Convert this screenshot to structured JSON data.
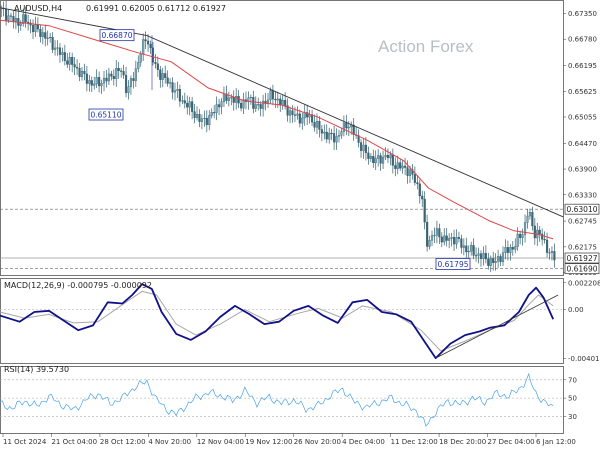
{
  "chart_data": [
    {
      "type": "candlestick",
      "header": {
        "symbol": "AUDUSD,H4",
        "ohlc": "0.61991 0.62005 0.61712 0.61927"
      },
      "watermark": "Action Forex",
      "y_ticks": [
        "0.67350",
        "0.66780",
        "0.66195",
        "0.65625",
        "0.65055",
        "0.64470",
        "0.63900",
        "0.63330",
        "0.62745",
        "0.62175",
        "0.61605"
      ],
      "ylim": [
        0.6155,
        0.6765
      ],
      "x_ticks": [
        "11 Oct 2024",
        "21 Oct 04:00",
        "28 Oct 12:00",
        "4 Nov 20:00",
        "12 Nov 04:00",
        "19 Nov 12:00",
        "26 Nov 20:00",
        "4 Dec 04:00",
        "11 Dec 12:00",
        "18 Dec 20:00",
        "27 Dec 04:00",
        "6 Jan 12:00"
      ],
      "price_path": [
        [
          0,
          0.6745
        ],
        [
          3,
          0.6731
        ],
        [
          7,
          0.6715
        ],
        [
          10,
          0.6722
        ],
        [
          14,
          0.6702
        ],
        [
          18,
          0.6688
        ],
        [
          22,
          0.6664
        ],
        [
          26,
          0.6638
        ],
        [
          30,
          0.6621
        ],
        [
          34,
          0.6597
        ],
        [
          38,
          0.6577
        ],
        [
          40,
          0.6583
        ],
        [
          43,
          0.6586
        ],
        [
          46,
          0.66
        ],
        [
          50,
          0.661
        ],
        [
          52,
          0.656
        ],
        [
          55,
          0.66
        ],
        [
          58,
          0.6655
        ],
        [
          60,
          0.6687
        ],
        [
          63,
          0.6622
        ],
        [
          66,
          0.6598
        ],
        [
          70,
          0.6575
        ],
        [
          74,
          0.6545
        ],
        [
          78,
          0.6525
        ],
        [
          82,
          0.6495
        ],
        [
          86,
          0.6505
        ],
        [
          90,
          0.654
        ],
        [
          94,
          0.6551
        ],
        [
          98,
          0.6534
        ],
        [
          102,
          0.6546
        ],
        [
          106,
          0.6524
        ],
        [
          110,
          0.6552
        ],
        [
          114,
          0.6543
        ],
        [
          118,
          0.6518
        ],
        [
          122,
          0.6502
        ],
        [
          126,
          0.651
        ],
        [
          130,
          0.6481
        ],
        [
          134,
          0.6463
        ],
        [
          138,
          0.646
        ],
        [
          142,
          0.6494
        ],
        [
          146,
          0.6456
        ],
        [
          150,
          0.642
        ],
        [
          154,
          0.6408
        ],
        [
          158,
          0.6421
        ],
        [
          162,
          0.6396
        ],
        [
          166,
          0.6392
        ],
        [
          170,
          0.6363
        ],
        [
          173,
          0.6316
        ],
        [
          174,
          0.6223
        ],
        [
          178,
          0.625
        ],
        [
          182,
          0.6232
        ],
        [
          186,
          0.6237
        ],
        [
          190,
          0.6214
        ],
        [
          194,
          0.6204
        ],
        [
          198,
          0.6192
        ],
        [
          202,
          0.6181
        ],
        [
          206,
          0.6205
        ],
        [
          210,
          0.6218
        ],
        [
          214,
          0.6254
        ],
        [
          216,
          0.6301
        ],
        [
          218,
          0.625
        ],
        [
          220,
          0.625
        ],
        [
          224,
          0.6212
        ],
        [
          226,
          0.6193
        ]
      ],
      "ma_path": [
        [
          0,
          0.672
        ],
        [
          20,
          0.6708
        ],
        [
          40,
          0.6675
        ],
        [
          55,
          0.665
        ],
        [
          70,
          0.6628
        ],
        [
          85,
          0.657
        ],
        [
          100,
          0.6541
        ],
        [
          115,
          0.6532
        ],
        [
          130,
          0.6505
        ],
        [
          150,
          0.6454
        ],
        [
          165,
          0.6408
        ],
        [
          175,
          0.6348
        ],
        [
          185,
          0.6318
        ],
        [
          200,
          0.6275
        ],
        [
          210,
          0.6253
        ],
        [
          220,
          0.6245
        ],
        [
          226,
          0.6235
        ]
      ],
      "trendline": [
        [
          0,
          0.6748
        ],
        [
          60,
          0.6686
        ],
        [
          230,
          0.6284
        ]
      ],
      "levels": [
        {
          "label": "0.63010",
          "value": 0.6301,
          "style": "dashed"
        },
        {
          "label": "0.61690",
          "value": 0.6169,
          "style": "dashed"
        },
        {
          "label": "0.61927",
          "value": 0.61927,
          "style": "solid"
        }
      ],
      "annotations": [
        {
          "label": "0.66870",
          "value": 0.6687
        },
        {
          "label": "0.65110",
          "value": 0.6511
        },
        {
          "label": "0.61795",
          "value": 0.61795
        }
      ]
    },
    {
      "type": "line",
      "header": "MACD(12,26,9) -0.000795 -0.000092",
      "y_ticks": [
        "0.002208",
        "0.00",
        "-0.004012"
      ],
      "ylim": [
        -0.0044,
        0.0026
      ],
      "series": [
        {
          "role": "macd",
          "color": "#10108a",
          "points": [
            [
              0,
              -0.0005
            ],
            [
              8,
              -0.001
            ],
            [
              14,
              -0.0002
            ],
            [
              20,
              -0.0001
            ],
            [
              26,
              -0.0009
            ],
            [
              32,
              -0.0017
            ],
            [
              38,
              -0.0013
            ],
            [
              44,
              0.0006
            ],
            [
              50,
              0.0005
            ],
            [
              54,
              0.0012
            ],
            [
              58,
              0.0021
            ],
            [
              62,
              0.0017
            ],
            [
              66,
              -0.0002
            ],
            [
              72,
              -0.002
            ],
            [
              78,
              -0.0025
            ],
            [
              84,
              -0.0018
            ],
            [
              90,
              -0.0006
            ],
            [
              96,
              0.0003
            ],
            [
              102,
              -0.0004
            ],
            [
              108,
              -0.0012
            ],
            [
              114,
              -0.001
            ],
            [
              120,
              -0.0001
            ],
            [
              126,
              0.0003
            ],
            [
              132,
              -0.0005
            ],
            [
              138,
              -0.0011
            ],
            [
              144,
              0.0006
            ],
            [
              150,
              0.0008
            ],
            [
              156,
              -0.0002
            ],
            [
              162,
              -0.0004
            ],
            [
              168,
              -0.001
            ],
            [
              174,
              -0.0028
            ],
            [
              178,
              -0.004
            ],
            [
              184,
              -0.0028
            ],
            [
              190,
              -0.0021
            ],
            [
              196,
              -0.0018
            ],
            [
              200,
              -0.0015
            ],
            [
              206,
              -0.0013
            ],
            [
              212,
              -0.0002
            ],
            [
              216,
              0.0012
            ],
            [
              219,
              0.0018
            ],
            [
              222,
              0.001
            ],
            [
              226,
              -0.0008
            ]
          ]
        },
        {
          "role": "signal",
          "color": "#a8a8a8",
          "points": [
            [
              0,
              -0.0002
            ],
            [
              10,
              -0.0007
            ],
            [
              20,
              -0.0004
            ],
            [
              30,
              -0.0011
            ],
            [
              40,
              -0.001
            ],
            [
              50,
              0.0004
            ],
            [
              58,
              0.0015
            ],
            [
              64,
              0.0012
            ],
            [
              72,
              -0.0012
            ],
            [
              80,
              -0.0021
            ],
            [
              90,
              -0.0012
            ],
            [
              100,
              0.0
            ],
            [
              110,
              -0.001
            ],
            [
              122,
              -0.0003
            ],
            [
              130,
              0.0001
            ],
            [
              140,
              -0.0007
            ],
            [
              148,
              0.0003
            ],
            [
              160,
              -0.0002
            ],
            [
              172,
              -0.0017
            ],
            [
              180,
              -0.0034
            ],
            [
              190,
              -0.0026
            ],
            [
              200,
              -0.0017
            ],
            [
              210,
              -0.0009
            ],
            [
              216,
              0.0004
            ],
            [
              220,
              0.0012
            ],
            [
              226,
              0.0003
            ]
          ]
        }
      ],
      "trendline": [
        [
          178,
          -0.004
        ],
        [
          228,
          0.0012
        ]
      ]
    },
    {
      "type": "line",
      "header": "RSI(14) 39.5730",
      "y_ticks": [
        "70",
        "50",
        "30"
      ],
      "ylim": [
        12,
        85
      ],
      "series": [
        {
          "role": "rsi",
          "color": "#4aa3e8",
          "points": [
            [
              0,
              44
            ],
            [
              5,
              39
            ],
            [
              10,
              47
            ],
            [
              15,
              41
            ],
            [
              20,
              52
            ],
            [
              25,
              43
            ],
            [
              30,
              37
            ],
            [
              35,
              48
            ],
            [
              40,
              55
            ],
            [
              45,
              44
            ],
            [
              50,
              50
            ],
            [
              55,
              62
            ],
            [
              60,
              68
            ],
            [
              64,
              48
            ],
            [
              68,
              38
            ],
            [
              72,
              32
            ],
            [
              76,
              42
            ],
            [
              80,
              50
            ],
            [
              85,
              56
            ],
            [
              90,
              53
            ],
            [
              95,
              47
            ],
            [
              100,
              58
            ],
            [
              105,
              45
            ],
            [
              110,
              51
            ],
            [
              115,
              44
            ],
            [
              120,
              48
            ],
            [
              125,
              38
            ],
            [
              130,
              42
            ],
            [
              135,
              53
            ],
            [
              140,
              60
            ],
            [
              145,
              45
            ],
            [
              150,
              40
            ],
            [
              155,
              46
            ],
            [
              160,
              50
            ],
            [
              165,
              43
            ],
            [
              170,
              37
            ],
            [
              174,
              20
            ],
            [
              178,
              35
            ],
            [
              183,
              47
            ],
            [
              188,
              43
            ],
            [
              193,
              50
            ],
            [
              198,
              46
            ],
            [
              203,
              55
            ],
            [
              208,
              52
            ],
            [
              212,
              60
            ],
            [
              216,
              72
            ],
            [
              219,
              55
            ],
            [
              223,
              44
            ],
            [
              226,
              40
            ]
          ]
        }
      ]
    }
  ]
}
